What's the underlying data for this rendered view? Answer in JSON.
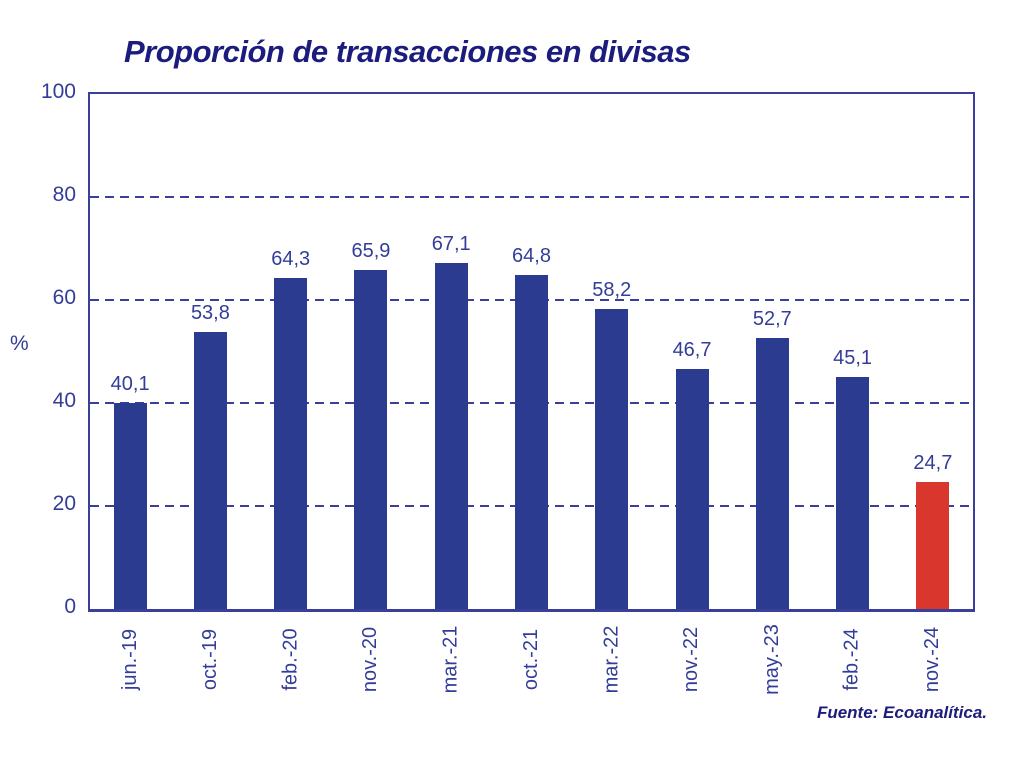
{
  "title": "Proporción de transacciones en divisas",
  "source": "Fuente: Ecoanalítica.",
  "y_axis": {
    "unit": "%",
    "ticks": [
      0,
      20,
      40,
      60,
      80,
      100
    ],
    "gridlines": [
      20,
      40,
      60,
      80
    ]
  },
  "chart_data": {
    "type": "bar",
    "title": "Proporción de transacciones en divisas",
    "xlabel": "",
    "ylabel": "%",
    "ylim": [
      0,
      100
    ],
    "grid": "horizontal dashed at 20/40/60/80",
    "legend": "none",
    "categories": [
      "jun.-19",
      "oct.-19",
      "feb.-20",
      "nov.-20",
      "mar.-21",
      "oct.-21",
      "mar.-22",
      "nov.-22",
      "may.-23",
      "feb.-24",
      "nov.-24"
    ],
    "values": [
      40.1,
      53.8,
      64.3,
      65.9,
      67.1,
      64.8,
      58.2,
      46.7,
      52.7,
      45.1,
      24.7
    ],
    "value_labels": [
      "40,1",
      "53,8",
      "64,3",
      "65,9",
      "67,1",
      "64,8",
      "58,2",
      "46,7",
      "52,7",
      "45,1",
      "24,7"
    ],
    "highlight_index": 10,
    "colors": {
      "bar": "#2a3b90",
      "highlight_bar": "#d9362e",
      "label_text": "#333d99",
      "title_text": "#1b1c7d",
      "grid_line": "#3a4099"
    },
    "source": "Fuente: Ecoanalítica."
  }
}
